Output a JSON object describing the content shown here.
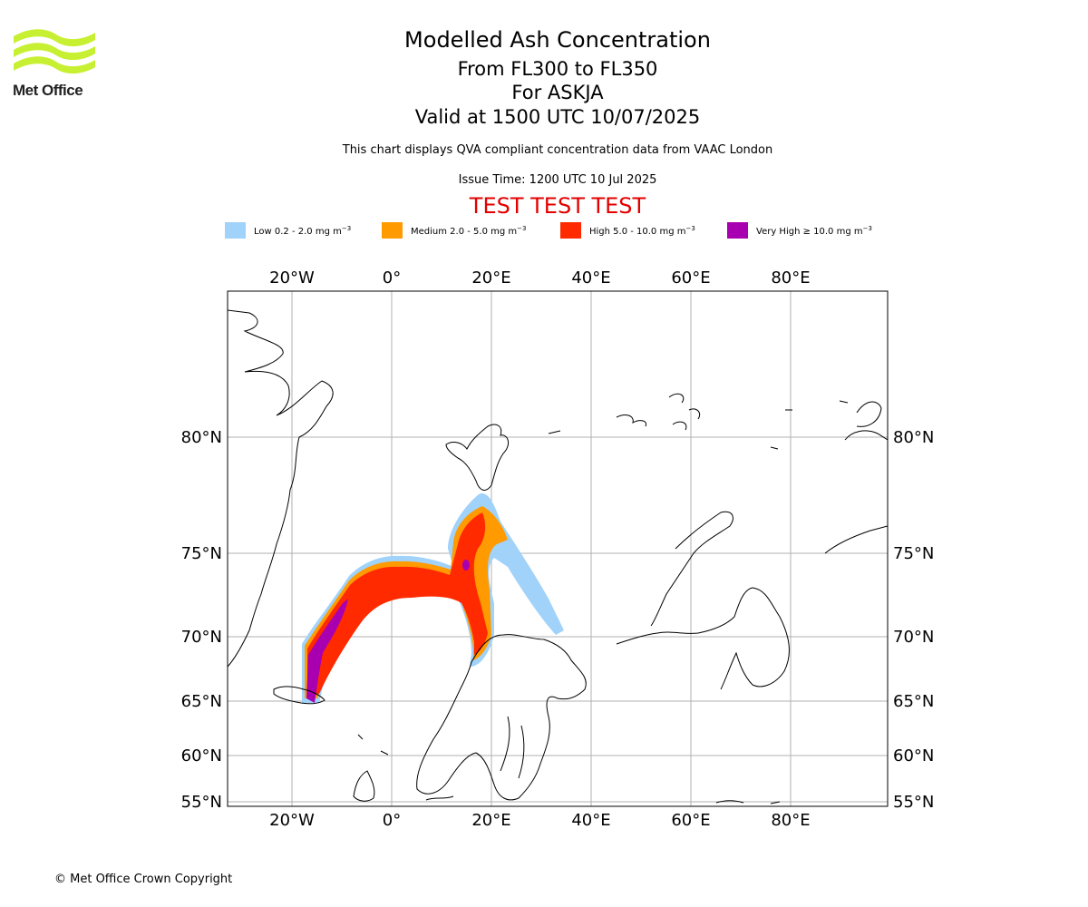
{
  "header": {
    "logo_text": "Met Office",
    "title": "Modelled Ash Concentration",
    "subtitle_levels": "From FL300 to FL350",
    "subtitle_volcano": "For ASKJA",
    "subtitle_valid": "Valid at 1500 UTC 10/07/2025",
    "note": "This chart displays QVA compliant concentration data from VAAC London",
    "issue_time": "Issue Time: 1200 UTC 10 Jul 2025",
    "test_banner": "TEST TEST TEST"
  },
  "legend": [
    {
      "label": "Low 0.2 - 2.0 mg m",
      "unit_exp": "−3",
      "color": "#a0d2fa"
    },
    {
      "label": "Medium 2.0 - 5.0 mg m",
      "unit_exp": "−3",
      "color": "#ff9a00"
    },
    {
      "label": "High 5.0 - 10.0 mg m",
      "unit_exp": "−3",
      "color": "#ff2a00"
    },
    {
      "label": "Very High  ≥  10.0 mg m",
      "unit_exp": "−3",
      "color": "#a800b0"
    }
  ],
  "map": {
    "lon_ticks": [
      "20°W",
      "0°",
      "20°E",
      "40°E",
      "60°E",
      "80°E"
    ],
    "lat_ticks": [
      "80°N",
      "75°N",
      "70°N",
      "65°N",
      "60°N",
      "55°N"
    ]
  },
  "footer": {
    "copyright": "© Met Office Crown Copyright"
  }
}
